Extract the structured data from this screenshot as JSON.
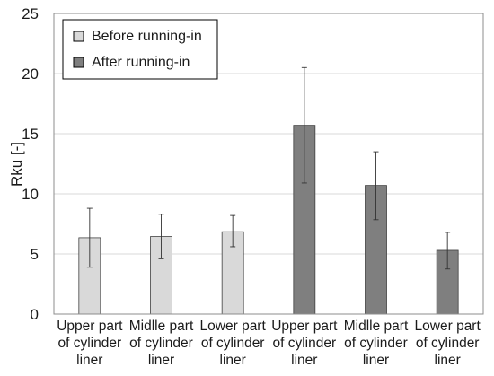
{
  "chart_data": {
    "type": "bar",
    "categories": [
      [
        "Upper part",
        "of cylinder",
        "liner"
      ],
      [
        "Midlle part",
        "of cylinder",
        "liner"
      ],
      [
        "Lower part",
        "of cylinder",
        "liner"
      ],
      [
        "Upper part",
        "of cylinder",
        "liner"
      ],
      [
        "Midlle part",
        "of cylinder",
        "liner"
      ],
      [
        "Lower part",
        "of cylinder",
        "liner"
      ]
    ],
    "values": [
      6.35,
      6.45,
      6.85,
      15.7,
      10.7,
      5.3
    ],
    "error_low": [
      3.9,
      4.6,
      5.6,
      10.9,
      7.85,
      3.75
    ],
    "error_high": [
      8.8,
      8.3,
      8.2,
      20.5,
      13.5,
      6.8
    ],
    "bar_series": [
      0,
      0,
      0,
      1,
      1,
      1
    ],
    "series": [
      {
        "name": "Before running-in",
        "color": "#d9d9d9"
      },
      {
        "name": "After running-in",
        "color": "#7f7f7f"
      }
    ],
    "ylabel": "Rku [-]",
    "ylim": [
      0,
      25
    ],
    "yticks": [
      "0",
      "5",
      "10",
      "15",
      "20",
      "25"
    ],
    "grid": true,
    "legend": "top-left"
  }
}
